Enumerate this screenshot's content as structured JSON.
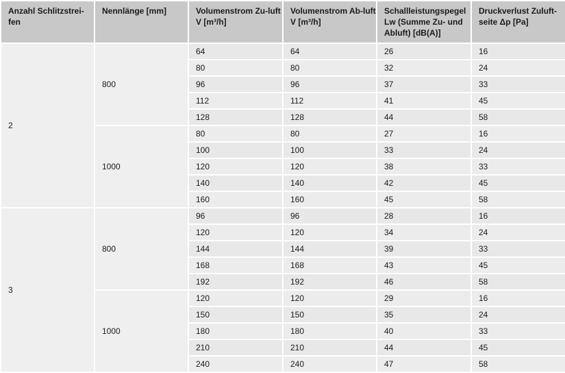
{
  "headers": [
    "Anzahl Schlitzstrei-fen",
    "Nennlänge [mm]",
    "Volumenstrom Zu-luft V [m³/h]",
    "Volumenstrom Ab-luft V [m³/h]",
    "Schallleistungspegel Lw (Summe Zu- und Abluft) [dB(A)]",
    "Druckverlust Zuluft-seite Δp [Pa]"
  ],
  "groups": [
    {
      "anzahl": "2",
      "sub": [
        {
          "laenge": "800",
          "rows": [
            [
              "64",
              "64",
              "26",
              "16"
            ],
            [
              "80",
              "80",
              "32",
              "24"
            ],
            [
              "96",
              "96",
              "37",
              "33"
            ],
            [
              "112",
              "112",
              "41",
              "45"
            ],
            [
              "128",
              "128",
              "44",
              "58"
            ]
          ]
        },
        {
          "laenge": "1000",
          "rows": [
            [
              "80",
              "80",
              "27",
              "16"
            ],
            [
              "100",
              "100",
              "33",
              "24"
            ],
            [
              "120",
              "120",
              "38",
              "33"
            ],
            [
              "140",
              "140",
              "42",
              "45"
            ],
            [
              "160",
              "160",
              "45",
              "58"
            ]
          ]
        }
      ]
    },
    {
      "anzahl": "3",
      "sub": [
        {
          "laenge": "800",
          "rows": [
            [
              "96",
              "96",
              "28",
              "16"
            ],
            [
              "120",
              "120",
              "34",
              "24"
            ],
            [
              "144",
              "144",
              "39",
              "33"
            ],
            [
              "168",
              "168",
              "43",
              "45"
            ],
            [
              "192",
              "192",
              "46",
              "58"
            ]
          ]
        },
        {
          "laenge": "1000",
          "rows": [
            [
              "120",
              "120",
              "29",
              "16"
            ],
            [
              "150",
              "150",
              "35",
              "24"
            ],
            [
              "180",
              "180",
              "40",
              "33"
            ],
            [
              "210",
              "210",
              "44",
              "45"
            ],
            [
              "240",
              "240",
              "47",
              "58"
            ]
          ]
        }
      ]
    }
  ]
}
